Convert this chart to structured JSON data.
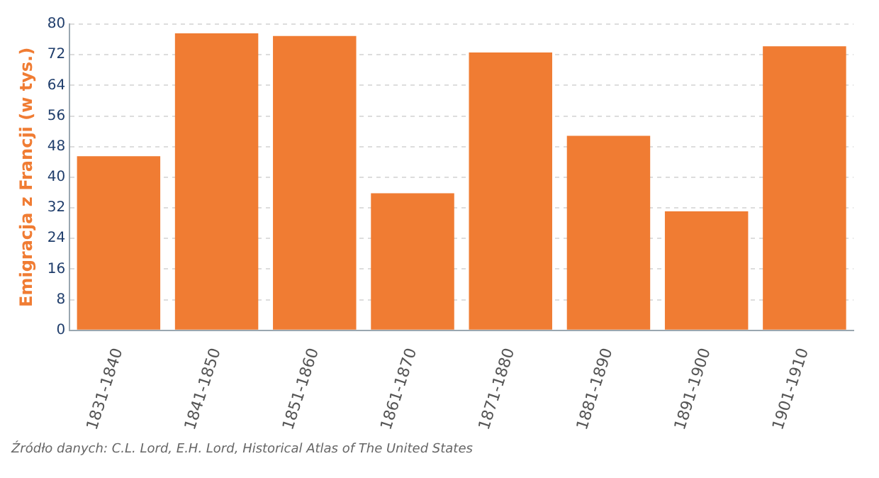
{
  "chart_data": {
    "type": "bar",
    "ylabel": "Emigracja z Francji (w tys.)",
    "categories": [
      "1831-1840",
      "1841-1850",
      "1851-1860",
      "1861-1870",
      "1871-1880",
      "1881-1890",
      "1891-1900",
      "1901-1910"
    ],
    "values": [
      45.5,
      77.6,
      76.9,
      35.8,
      72.6,
      50.8,
      31.1,
      74.2
    ],
    "color": "#f07c33",
    "ylim": [
      0,
      80
    ],
    "yticks": [
      0,
      8,
      16,
      24,
      32,
      40,
      48,
      56,
      64,
      72,
      80
    ],
    "grid": "y",
    "legend": false,
    "annotations": [
      "Źródło danych: C.L. Lord, E.H. Lord, Historical Atlas of The United States"
    ]
  }
}
